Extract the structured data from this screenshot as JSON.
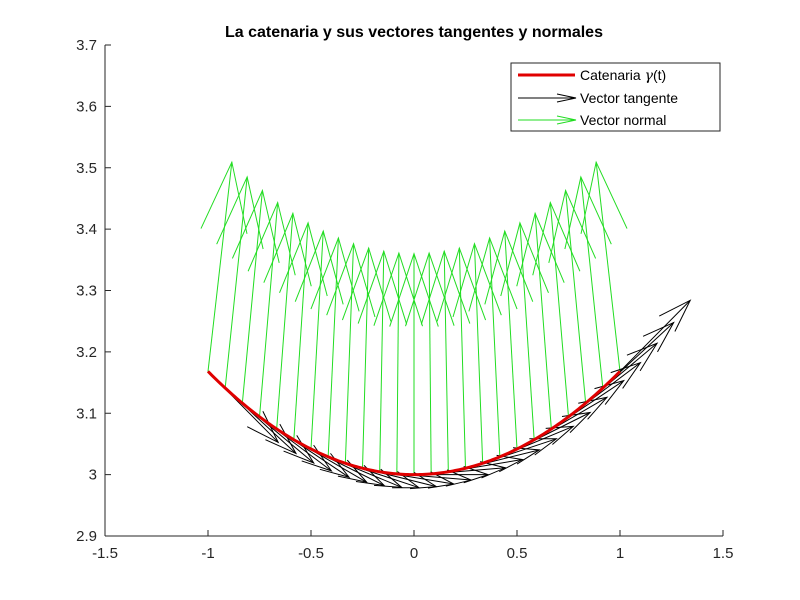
{
  "chart_data": {
    "type": "line",
    "title": "La catenaria y sus vectores tangentes y normales",
    "xlabel": "",
    "ylabel": "",
    "xlim": [
      -1.5,
      1.5
    ],
    "ylim": [
      2.9,
      3.7
    ],
    "xticks": [
      "-1.5",
      "-1",
      "-0.5",
      "0",
      "0.5",
      "1",
      "1.5"
    ],
    "xtick_values": [
      -1.5,
      -1,
      -0.5,
      0,
      0.5,
      1,
      1.5
    ],
    "yticks": [
      "2.9",
      "3",
      "3.1",
      "3.2",
      "3.3",
      "3.4",
      "3.5",
      "3.6",
      "3.7"
    ],
    "ytick_values": [
      2.9,
      3.0,
      3.1,
      3.2,
      3.3,
      3.4,
      3.5,
      3.6,
      3.7
    ],
    "grid": false,
    "legend_position": "top-right",
    "curve": {
      "formula": "y = 3*cosh(x/3)",
      "a": 3,
      "x_range": [
        -1,
        1
      ],
      "samples": 25
    },
    "vector_length": 0.36,
    "series": [
      {
        "name": "Catenaria γ(t)",
        "label_prefix": "Catenaria ",
        "label_symbol": "γ",
        "label_suffix": "(t)",
        "color": "#e00000",
        "kind": "line"
      },
      {
        "name": "Vector tangente",
        "color": "#000000",
        "kind": "quiver"
      },
      {
        "name": "Vector normal",
        "color": "#22dd22",
        "kind": "quiver"
      }
    ]
  }
}
